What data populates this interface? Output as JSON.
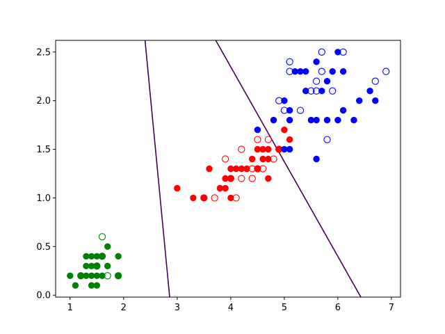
{
  "chart_data": {
    "type": "scatter",
    "title": "",
    "xlabel": "",
    "ylabel": "",
    "xlim": [
      0.73,
      7.17
    ],
    "ylim": [
      -0.02,
      2.62
    ],
    "xticks": [
      1,
      2,
      3,
      4,
      5,
      6,
      7
    ],
    "yticks": [
      0.0,
      0.5,
      1.0,
      1.5,
      2.0,
      2.5
    ],
    "xtick_labels": [
      "1",
      "2",
      "3",
      "4",
      "5",
      "6",
      "7"
    ],
    "ytick_labels": [
      "0.0",
      "0.5",
      "1.0",
      "1.5",
      "2.0",
      "2.5"
    ],
    "grid": false,
    "legend": "none",
    "boundaries_color": "#440154",
    "boundaries": [
      {
        "points": [
          [
            2.4,
            2.62
          ],
          [
            2.86,
            -0.02
          ]
        ]
      },
      {
        "points": [
          [
            3.72,
            2.62
          ],
          [
            6.43,
            -0.02
          ]
        ]
      }
    ],
    "series": [
      {
        "color": "#008000",
        "marker": "filled",
        "points": [
          [
            1.0,
            0.2
          ],
          [
            1.1,
            0.1
          ],
          [
            1.2,
            0.2
          ],
          [
            1.3,
            0.2
          ],
          [
            1.3,
            0.3
          ],
          [
            1.3,
            0.4
          ],
          [
            1.4,
            0.1
          ],
          [
            1.4,
            0.2
          ],
          [
            1.4,
            0.3
          ],
          [
            1.5,
            0.1
          ],
          [
            1.5,
            0.2
          ],
          [
            1.5,
            0.4
          ],
          [
            1.6,
            0.2
          ],
          [
            1.6,
            0.4
          ],
          [
            1.7,
            0.3
          ],
          [
            1.7,
            0.5
          ],
          [
            1.9,
            0.2
          ],
          [
            1.9,
            0.4
          ],
          [
            1.5,
            0.3
          ],
          [
            1.4,
            0.4
          ]
        ]
      },
      {
        "color": "#008000",
        "marker": "open",
        "points": [
          [
            1.2,
            0.2
          ],
          [
            1.5,
            0.3
          ],
          [
            1.6,
            0.6
          ],
          [
            1.6,
            0.4
          ],
          [
            1.7,
            0.2
          ],
          [
            1.9,
            0.2
          ]
        ]
      },
      {
        "color": "#ff0000",
        "marker": "filled",
        "points": [
          [
            3.0,
            1.1
          ],
          [
            3.3,
            1.0
          ],
          [
            3.5,
            1.0
          ],
          [
            3.6,
            1.3
          ],
          [
            3.8,
            1.1
          ],
          [
            3.9,
            1.1
          ],
          [
            3.9,
            1.2
          ],
          [
            4.0,
            1.0
          ],
          [
            4.0,
            1.2
          ],
          [
            4.0,
            1.3
          ],
          [
            4.1,
            1.3
          ],
          [
            4.2,
            1.3
          ],
          [
            4.3,
            1.3
          ],
          [
            4.4,
            1.4
          ],
          [
            4.5,
            1.5
          ],
          [
            4.6,
            1.5
          ],
          [
            4.7,
            1.4
          ],
          [
            4.7,
            1.5
          ],
          [
            4.7,
            1.2
          ],
          [
            4.8,
            1.8
          ],
          [
            4.9,
            1.5
          ],
          [
            5.0,
            1.7
          ],
          [
            5.1,
            1.6
          ],
          [
            4.6,
            1.4
          ],
          [
            4.5,
            1.3
          ]
        ]
      },
      {
        "color": "#ff0000",
        "marker": "open",
        "points": [
          [
            3.5,
            1.0
          ],
          [
            3.7,
            1.0
          ],
          [
            3.9,
            1.4
          ],
          [
            4.1,
            1.0
          ],
          [
            4.2,
            1.2
          ],
          [
            4.2,
            1.5
          ],
          [
            4.4,
            1.2
          ],
          [
            4.4,
            1.3
          ],
          [
            4.5,
            1.3
          ],
          [
            4.5,
            1.6
          ],
          [
            4.6,
            1.3
          ],
          [
            4.7,
            1.6
          ],
          [
            4.8,
            1.4
          ],
          [
            4.9,
            1.5
          ],
          [
            4.0,
            1.2
          ]
        ]
      },
      {
        "color": "#0000ff",
        "marker": "filled",
        "points": [
          [
            4.5,
            1.7
          ],
          [
            4.8,
            1.8
          ],
          [
            5.0,
            1.5
          ],
          [
            5.1,
            1.5
          ],
          [
            5.1,
            1.9
          ],
          [
            5.1,
            1.8
          ],
          [
            5.0,
            2.0
          ],
          [
            5.2,
            2.3
          ],
          [
            5.3,
            2.3
          ],
          [
            5.4,
            2.3
          ],
          [
            5.4,
            2.1
          ],
          [
            5.5,
            1.8
          ],
          [
            5.6,
            1.8
          ],
          [
            5.6,
            2.4
          ],
          [
            5.6,
            1.4
          ],
          [
            5.7,
            2.1
          ],
          [
            5.8,
            1.8
          ],
          [
            5.8,
            2.2
          ],
          [
            5.9,
            2.3
          ],
          [
            6.0,
            2.5
          ],
          [
            6.0,
            1.8
          ],
          [
            6.1,
            2.3
          ],
          [
            6.1,
            1.9
          ],
          [
            6.3,
            1.8
          ],
          [
            6.4,
            2.0
          ],
          [
            6.6,
            2.1
          ],
          [
            6.7,
            2.0
          ]
        ]
      },
      {
        "color": "#0000ff",
        "marker": "open",
        "points": [
          [
            4.9,
            2.0
          ],
          [
            5.0,
            1.9
          ],
          [
            5.1,
            2.3
          ],
          [
            5.1,
            2.4
          ],
          [
            5.3,
            1.9
          ],
          [
            5.5,
            2.1
          ],
          [
            5.6,
            2.2
          ],
          [
            5.6,
            2.1
          ],
          [
            5.7,
            2.3
          ],
          [
            5.7,
            2.5
          ],
          [
            5.8,
            1.6
          ],
          [
            5.9,
            2.1
          ],
          [
            6.1,
            2.5
          ],
          [
            6.7,
            2.2
          ],
          [
            6.9,
            2.3
          ]
        ]
      }
    ]
  }
}
